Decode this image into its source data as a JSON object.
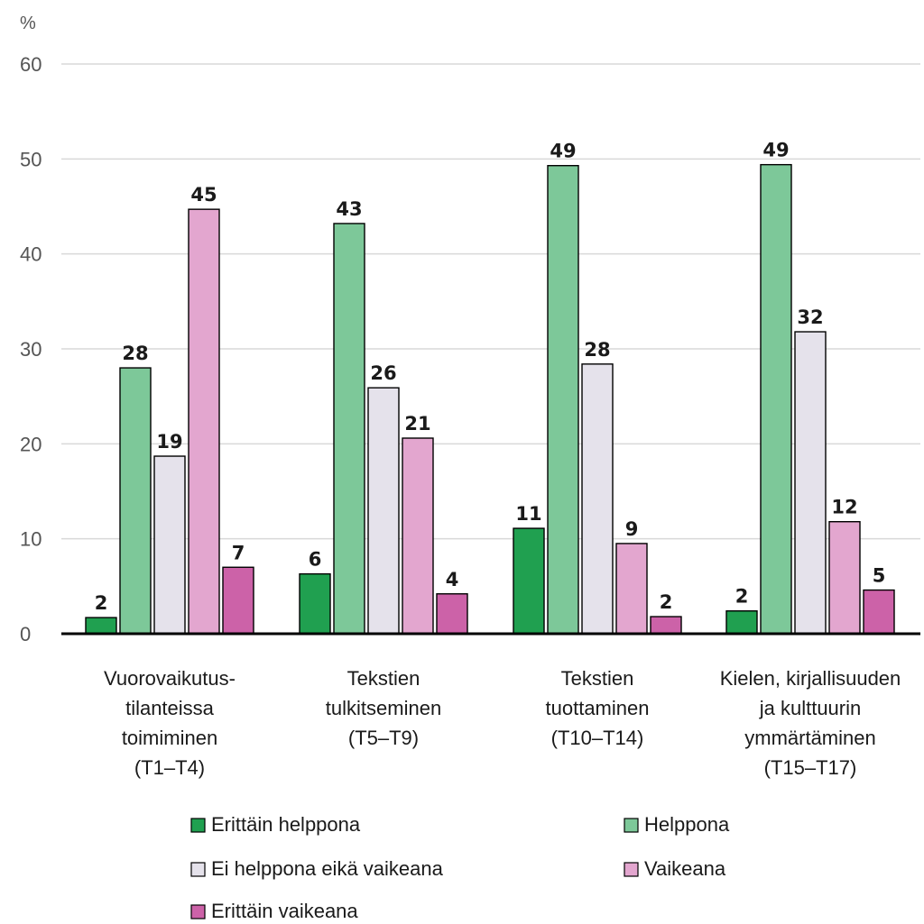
{
  "chart_data": {
    "type": "bar",
    "ylabel": "%",
    "ylim": [
      0,
      60
    ],
    "yticks": [
      0,
      10,
      20,
      30,
      40,
      50,
      60
    ],
    "grid": true,
    "legend_position": "bottom",
    "categories": [
      [
        "Vuorovaikutus-",
        "tilanteissa",
        "toimiminen",
        "(T1–T4)"
      ],
      [
        "Tekstien",
        "tulkitseminen",
        "(T5–T9)"
      ],
      [
        "Tekstien",
        "tuottaminen",
        "(T10–T14)"
      ],
      [
        "Kielen, kirjallisuuden",
        "ja kulttuurin",
        "ymmärtäminen",
        "(T15–T17)"
      ]
    ],
    "series": [
      {
        "name": "Erittäin helppona",
        "color": "#20a050",
        "values": [
          1.7,
          6.3,
          11.1,
          2.4
        ],
        "labels": [
          "2",
          "6",
          "11",
          "2"
        ]
      },
      {
        "name": "Helppona",
        "color": "#7dc899",
        "values": [
          28.0,
          43.2,
          49.3,
          49.4
        ],
        "labels": [
          "28",
          "43",
          "49",
          "49"
        ]
      },
      {
        "name": "Ei helppona eikä vaikeana",
        "color": "#e5e2eb",
        "values": [
          18.7,
          25.9,
          28.4,
          31.8
        ],
        "labels": [
          "19",
          "26",
          "28",
          "32"
        ]
      },
      {
        "name": "Vaikeana",
        "color": "#e3a6cf",
        "values": [
          44.7,
          20.6,
          9.5,
          11.8
        ],
        "labels": [
          "45",
          "21",
          "9",
          "12"
        ]
      },
      {
        "name": "Erittäin vaikeana",
        "color": "#cc62a8",
        "values": [
          7.0,
          4.2,
          1.8,
          4.6
        ],
        "labels": [
          "7",
          "4",
          "2",
          "5"
        ]
      }
    ]
  }
}
